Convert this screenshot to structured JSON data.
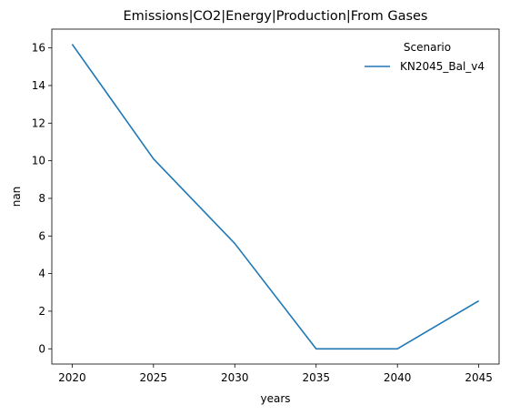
{
  "chart_data": {
    "type": "line",
    "title": "Emissions|CO2|Energy|Production|From Gases",
    "xlabel": "years",
    "ylabel": "nan",
    "x": [
      2020,
      2025,
      2030,
      2035,
      2040,
      2045
    ],
    "xticks": [
      "2020",
      "2025",
      "2030",
      "2035",
      "2040",
      "2045"
    ],
    "yticks": [
      "0",
      "2",
      "4",
      "6",
      "8",
      "10",
      "12",
      "14",
      "16"
    ],
    "xlim": [
      2018.75,
      2046.25
    ],
    "ylim": [
      -0.81,
      17.0
    ],
    "grid": false,
    "legend": {
      "title": "Scenario",
      "placement": "top-right"
    },
    "series": [
      {
        "name": "KN2045_Bal_v4",
        "color": "#1f77b4",
        "values": [
          16.2,
          10.1,
          5.6,
          0.0,
          0.0,
          2.55
        ]
      }
    ]
  }
}
